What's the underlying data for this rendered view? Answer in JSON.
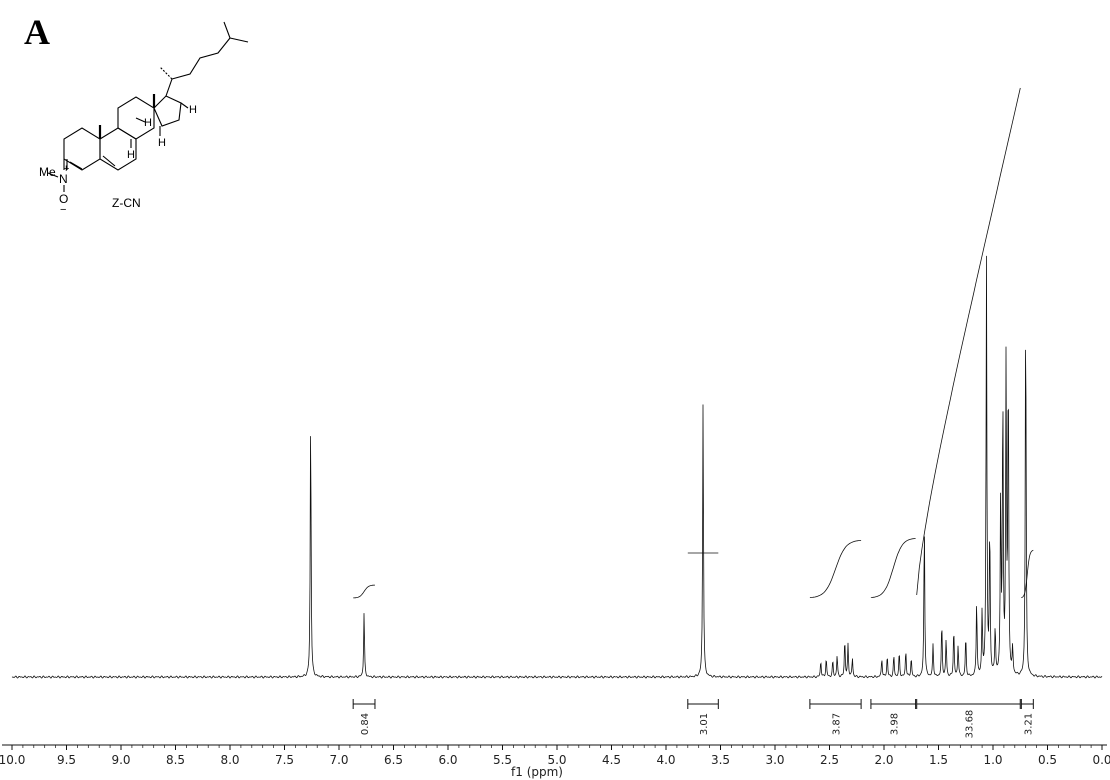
{
  "panel_label": "A",
  "compound": {
    "name": "Z-CN",
    "atom_labels": {
      "me": "Me",
      "n": "N",
      "o": "O",
      "plus": "+",
      "minus": "−",
      "h": "H"
    }
  },
  "chart_data": {
    "type": "line",
    "title": "",
    "xlabel": "f1 (ppm)",
    "ylabel": "",
    "xlim": [
      10.0,
      0.0
    ],
    "x_reversed": true,
    "grid": false,
    "x_ticks": [
      "10.0",
      "9.5",
      "9.0",
      "8.5",
      "8.0",
      "7.5",
      "7.0",
      "6.5",
      "6.0",
      "5.5",
      "5.0",
      "4.5",
      "4.0",
      "3.5",
      "3.0",
      "2.5",
      "2.0",
      "1.5",
      "1.0",
      "0.5",
      "0.0"
    ],
    "peaks": [
      {
        "ppm": 7.26,
        "height": 0.98
      },
      {
        "ppm": 6.77,
        "height": 0.24
      },
      {
        "ppm": 3.66,
        "height": 1.02
      },
      {
        "ppm": 2.58,
        "height": 0.06
      },
      {
        "ppm": 2.53,
        "height": 0.07
      },
      {
        "ppm": 2.47,
        "height": 0.06
      },
      {
        "ppm": 2.43,
        "height": 0.08
      },
      {
        "ppm": 2.36,
        "height": 0.14
      },
      {
        "ppm": 2.33,
        "height": 0.12
      },
      {
        "ppm": 2.29,
        "height": 0.07
      },
      {
        "ppm": 2.02,
        "height": 0.07
      },
      {
        "ppm": 1.97,
        "height": 0.08
      },
      {
        "ppm": 1.91,
        "height": 0.08
      },
      {
        "ppm": 1.86,
        "height": 0.09
      },
      {
        "ppm": 1.8,
        "height": 0.1
      },
      {
        "ppm": 1.75,
        "height": 0.07
      },
      {
        "ppm": 1.63,
        "height": 0.58
      },
      {
        "ppm": 1.55,
        "height": 0.12
      },
      {
        "ppm": 1.47,
        "height": 0.2
      },
      {
        "ppm": 1.43,
        "height": 0.14
      },
      {
        "ppm": 1.36,
        "height": 0.18
      },
      {
        "ppm": 1.32,
        "height": 0.12
      },
      {
        "ppm": 1.25,
        "height": 0.15
      },
      {
        "ppm": 1.15,
        "height": 0.28
      },
      {
        "ppm": 1.1,
        "height": 0.24
      },
      {
        "ppm": 1.06,
        "height": 1.54
      },
      {
        "ppm": 1.03,
        "height": 0.55
      },
      {
        "ppm": 0.98,
        "height": 0.18
      },
      {
        "ppm": 0.93,
        "height": 0.66
      },
      {
        "ppm": 0.91,
        "height": 1.04
      },
      {
        "ppm": 0.88,
        "height": 1.16
      },
      {
        "ppm": 0.86,
        "height": 1.14
      },
      {
        "ppm": 0.82,
        "height": 0.1
      },
      {
        "ppm": 0.7,
        "height": 1.4
      }
    ],
    "integrals": [
      {
        "from": 6.87,
        "to": 6.67,
        "value": 0.84,
        "label": "0.84"
      },
      {
        "from": 3.8,
        "to": 3.52,
        "value": 3.01,
        "label": "3.01"
      },
      {
        "from": 2.68,
        "to": 2.21,
        "value": 3.87,
        "label": "3.87"
      },
      {
        "from": 2.12,
        "to": 1.71,
        "value": 3.98,
        "label": "3.98"
      },
      {
        "from": 1.7,
        "to": 0.75,
        "value": 33.68,
        "label": "33.68"
      },
      {
        "from": 0.74,
        "to": 0.63,
        "value": 3.21,
        "label": "3.21"
      }
    ]
  }
}
